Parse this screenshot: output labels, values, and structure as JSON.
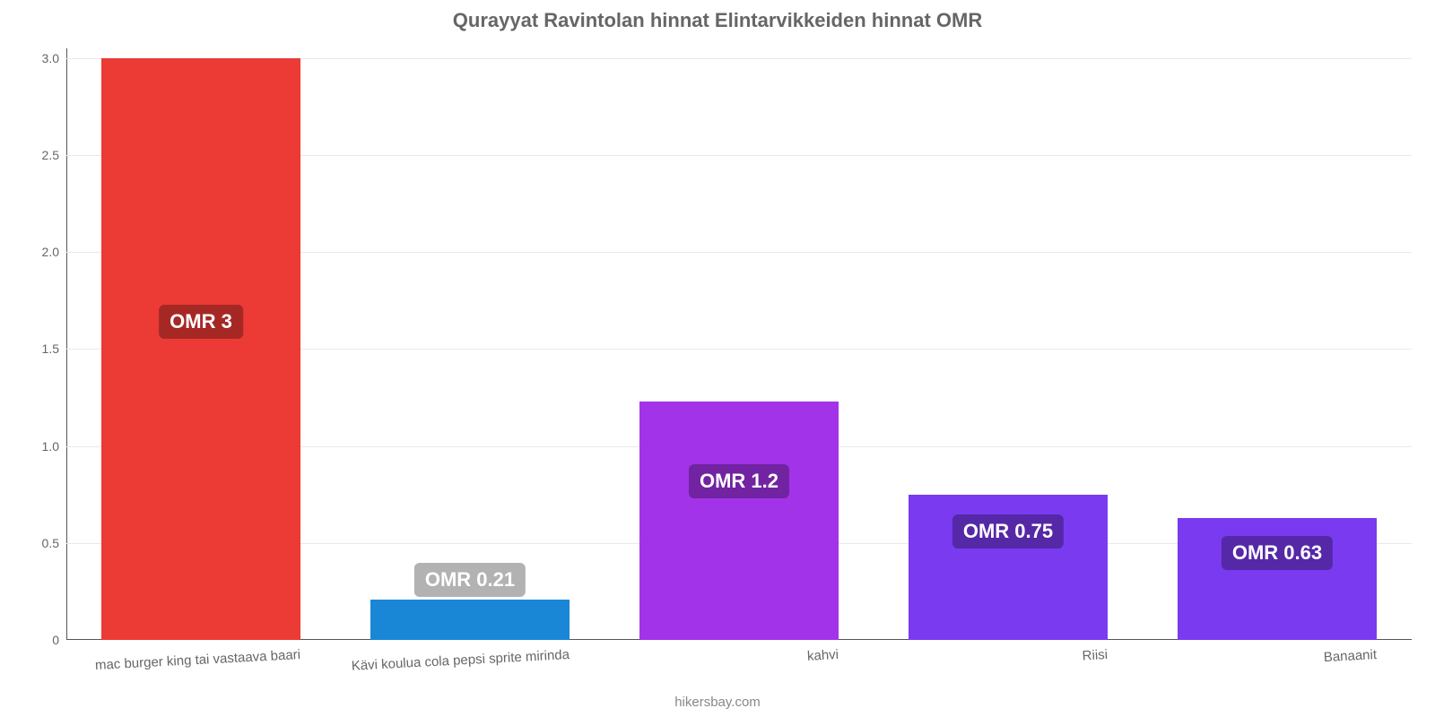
{
  "chart": {
    "type": "bar",
    "title": "Qurayyat Ravintolan hinnat Elintarvikkeiden hinnat OMR",
    "title_fontsize": 22,
    "title_color": "#666666",
    "attribution": "hikersbay.com",
    "attribution_color": "#888888",
    "background_color": "#ffffff",
    "grid_color": "#e9e9e9",
    "axis_color": "#555555",
    "tick_label_color": "#666666",
    "tick_label_fontsize": 14,
    "x_label_fontsize": 15,
    "x_label_rotate_deg": -3,
    "ylim": [
      0,
      3.05
    ],
    "yticks": [
      0,
      0.5,
      1.0,
      1.5,
      2.0,
      2.5,
      3.0
    ],
    "ytick_labels": [
      "0",
      "0.5",
      "1.0",
      "1.5",
      "2.0",
      "2.5",
      "3.0"
    ],
    "bar_width_ratio": 0.74,
    "value_label_fontsize": 22,
    "value_label_text_color": "#ffffff",
    "value_label_bg_opacity": 0.3,
    "categories": [
      "mac burger king tai vastaava baari",
      "Kävi koulua cola pepsi sprite mirinda",
      "kahvi",
      "Riisi",
      "Banaanit"
    ],
    "values": [
      3.0,
      0.21,
      1.23,
      0.75,
      0.63
    ],
    "value_labels": [
      "OMR 3",
      "OMR 0.21",
      "OMR 1.2",
      "OMR 0.75",
      "OMR 0.63"
    ],
    "bar_colors": [
      "#ec3a35",
      "#1a86d6",
      "#a333e8",
      "#7a3af0",
      "#7a3af0"
    ],
    "label_y_positions": [
      1.64,
      0.31,
      0.82,
      0.56,
      0.45
    ]
  }
}
